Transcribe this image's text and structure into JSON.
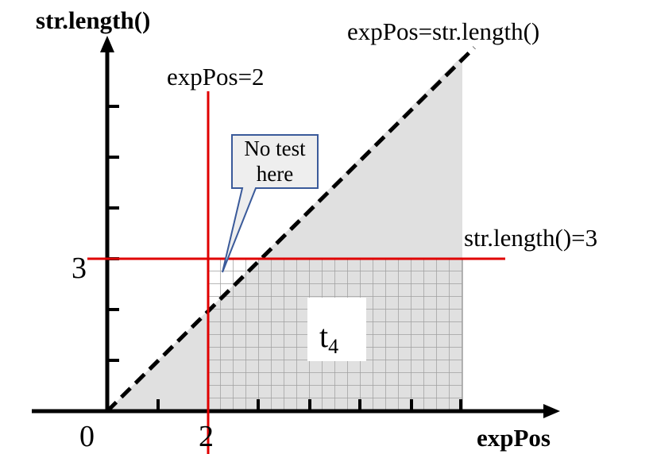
{
  "axes": {
    "y_label": "str.length()",
    "x_label": "expPos"
  },
  "lines": {
    "diagonal": "expPos=str.length()",
    "vertical": "expPos=2",
    "horizontal": "str.length()=3"
  },
  "ticks": {
    "origin": "0",
    "x": "2",
    "y": "3"
  },
  "callout": {
    "lines": [
      "No test",
      "here"
    ]
  },
  "region": {
    "label": "t",
    "subscript": "4"
  }
}
